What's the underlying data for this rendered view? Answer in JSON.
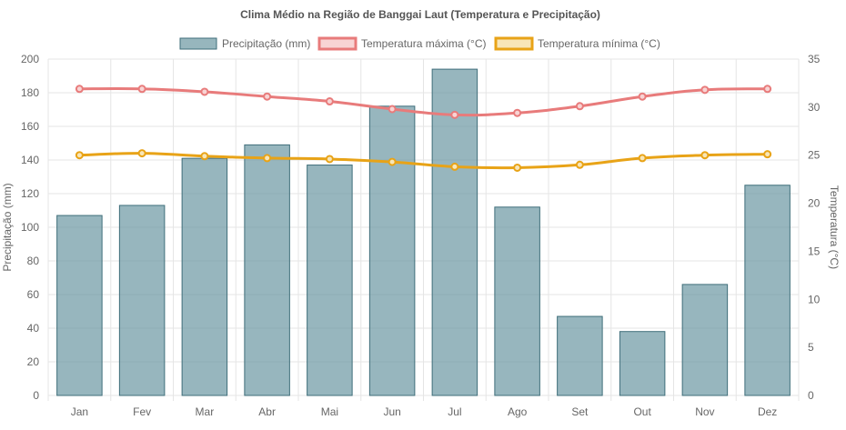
{
  "chart_data": {
    "type": "bar",
    "title": "Clima Médio na Região de Banggai Laut (Temperatura e Precipitação)",
    "categories": [
      "Jan",
      "Fev",
      "Mar",
      "Abr",
      "Mai",
      "Jun",
      "Jul",
      "Ago",
      "Set",
      "Out",
      "Nov",
      "Dez"
    ],
    "series": [
      {
        "name": "Precipitação (mm)",
        "type": "bar",
        "axis": "left",
        "color": "#6b97a3",
        "border_color": "#3f6e7a",
        "values": [
          107,
          113,
          141,
          149,
          137,
          172,
          194,
          112,
          47,
          38,
          66,
          125
        ]
      },
      {
        "name": "Temperatura máxima (°C)",
        "type": "line",
        "axis": "right",
        "color": "#e87b7b",
        "fill": "#f8d4d4",
        "values": [
          31.9,
          31.9,
          31.6,
          31.1,
          30.6,
          29.8,
          29.2,
          29.4,
          30.1,
          31.1,
          31.8,
          31.9
        ]
      },
      {
        "name": "Temperatura mínima (°C)",
        "type": "line",
        "axis": "right",
        "color": "#e8a317",
        "fill": "#f8e6b8",
        "values": [
          25.0,
          25.2,
          24.9,
          24.7,
          24.6,
          24.3,
          23.8,
          23.7,
          24.0,
          24.7,
          25.0,
          25.1
        ]
      }
    ],
    "y_left": {
      "label": "Precipitação (mm)",
      "min": 0,
      "max": 200,
      "step": 20
    },
    "y_right": {
      "label": "Temperatura (°C)",
      "min": 0,
      "max": 35,
      "step": 5
    },
    "legend": "top",
    "grid": true
  }
}
